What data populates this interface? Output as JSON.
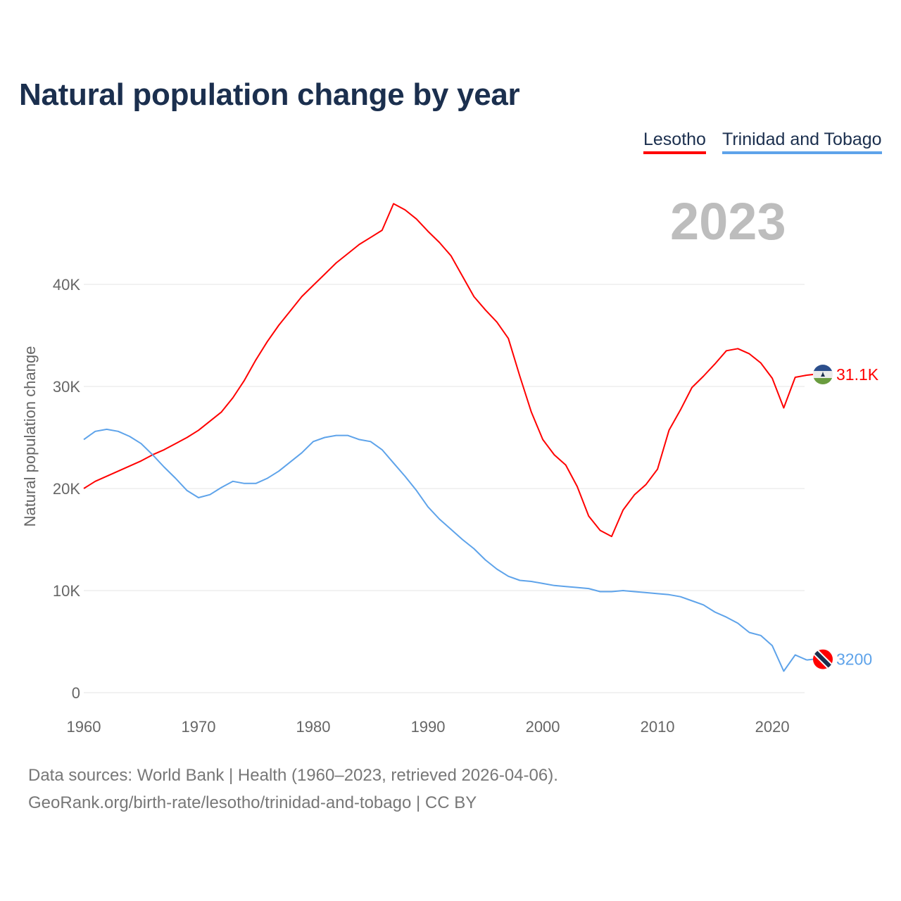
{
  "chart_data": {
    "type": "line",
    "title": "Natural population change by year",
    "ylabel": "Natural population change",
    "xlabel": "",
    "current_year_label": "2023",
    "xlim": [
      1960,
      2023
    ],
    "ylim": [
      0,
      50000
    ],
    "x_ticks": [
      1960,
      1970,
      1980,
      1990,
      2000,
      2010,
      2020
    ],
    "x_tick_labels": [
      "1960",
      "1970",
      "1980",
      "1990",
      "2000",
      "2010",
      "2020"
    ],
    "y_ticks": [
      0,
      10000,
      20000,
      30000,
      40000
    ],
    "y_tick_labels": [
      "0",
      "10K",
      "20K",
      "30K",
      "40K"
    ],
    "grid": true,
    "legend_position": "top-right",
    "x": [
      1960,
      1961,
      1962,
      1963,
      1964,
      1965,
      1966,
      1967,
      1968,
      1969,
      1970,
      1971,
      1972,
      1973,
      1974,
      1975,
      1976,
      1977,
      1978,
      1979,
      1980,
      1981,
      1982,
      1983,
      1984,
      1985,
      1986,
      1987,
      1988,
      1989,
      1990,
      1991,
      1992,
      1993,
      1994,
      1995,
      1996,
      1997,
      1998,
      1999,
      2000,
      2001,
      2002,
      2003,
      2004,
      2005,
      2006,
      2007,
      2008,
      2009,
      2010,
      2011,
      2012,
      2013,
      2014,
      2015,
      2016,
      2017,
      2018,
      2019,
      2020,
      2021,
      2022,
      2023
    ],
    "series": [
      {
        "name": "Lesotho",
        "color": "#ff0000",
        "end_label": "31.1K",
        "values": [
          20000,
          20700,
          21200,
          21700,
          22200,
          22700,
          23300,
          23800,
          24400,
          25000,
          25700,
          26600,
          27500,
          28900,
          30600,
          32600,
          34400,
          36000,
          37400,
          38800,
          39900,
          41000,
          42100,
          43000,
          43900,
          44600,
          45300,
          47900,
          47300,
          46400,
          45200,
          44100,
          42800,
          40800,
          38800,
          37500,
          36300,
          34700,
          31000,
          27500,
          24800,
          23300,
          22300,
          20200,
          17300,
          15900,
          15300,
          17900,
          19400,
          20400,
          21900,
          25700,
          27700,
          29900,
          31000,
          32200,
          33500,
          33700,
          33200,
          32300,
          30800,
          27900,
          30900,
          31100
        ]
      },
      {
        "name": "Trinidad and Tobago",
        "color": "#5ea3ea",
        "end_label": "3200",
        "values": [
          24800,
          25600,
          25800,
          25600,
          25100,
          24400,
          23300,
          22100,
          21000,
          19800,
          19100,
          19400,
          20100,
          20700,
          20500,
          20500,
          21000,
          21700,
          22600,
          23500,
          24600,
          25000,
          25200,
          25200,
          24800,
          24600,
          23800,
          22500,
          21200,
          19800,
          18200,
          17000,
          16000,
          15000,
          14100,
          13000,
          12100,
          11400,
          11000,
          10900,
          10700,
          10500,
          10400,
          10300,
          10200,
          9900,
          9900,
          10000,
          9900,
          9800,
          9700,
          9600,
          9400,
          9000,
          8600,
          7900,
          7400,
          6800,
          5900,
          5600,
          4600,
          2100,
          3700,
          3200
        ]
      }
    ]
  },
  "footer": {
    "line1": "Data sources: World Bank | Health (1960–2023, retrieved 2026-04-06).",
    "line2": "GeoRank.org/birth-rate/lesotho/trinidad-and-tobago | CC BY"
  }
}
